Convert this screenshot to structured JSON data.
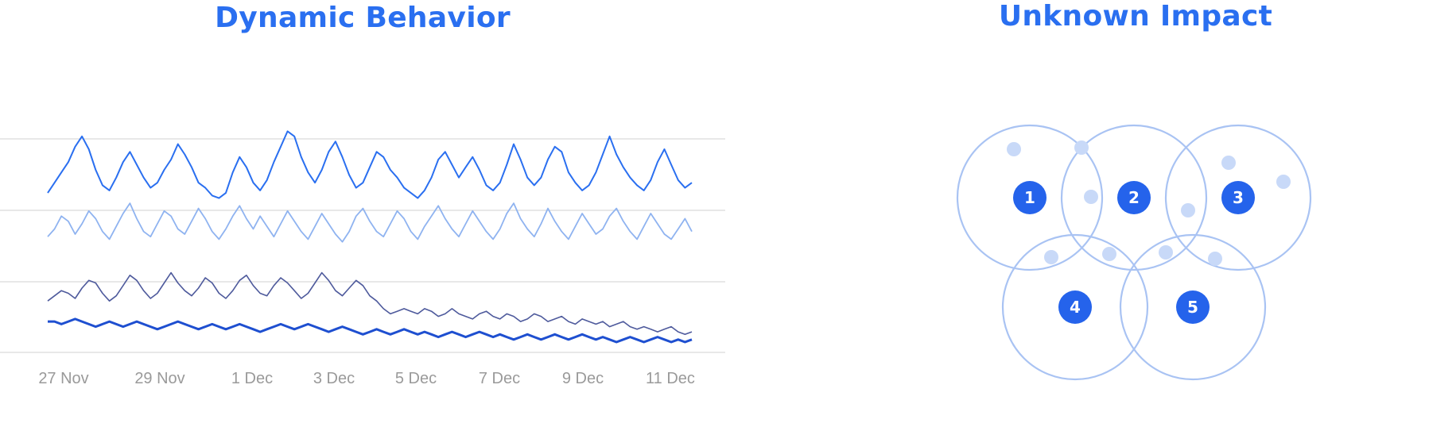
{
  "chart_data": [
    {
      "type": "line",
      "title": "Dynamic Behavior",
      "xlabel": "",
      "ylabel": "",
      "x_ticks": [
        "27 Nov",
        "29 Nov",
        "1 Dec",
        "3 Dec",
        "5 Dec",
        "7 Dec",
        "9 Dec",
        "11 Dec"
      ],
      "x_range": [
        "2023-11-26",
        "2023-12-12"
      ],
      "grid": true,
      "colors": [
        "#2a6ff0",
        "#8fb3f0",
        "#4e5a9c",
        "#1e4fd0"
      ],
      "series": [
        {
          "values": [
            62,
            66,
            70,
            74,
            80,
            84,
            79,
            71,
            65,
            63,
            68,
            74,
            78,
            73,
            68,
            64,
            66,
            71,
            75,
            81,
            77,
            72,
            66,
            64,
            61,
            60,
            62,
            70,
            76,
            72,
            66,
            63,
            67,
            74,
            80,
            86,
            84,
            76,
            70,
            66,
            71,
            78,
            82,
            76,
            69,
            64,
            66,
            72,
            78,
            76,
            71,
            68,
            64,
            62,
            60,
            63,
            68,
            75,
            78,
            73,
            68,
            72,
            76,
            71,
            65,
            63,
            66,
            73,
            81,
            75,
            68,
            65,
            68,
            75,
            80,
            78,
            70,
            66,
            63,
            65,
            70,
            77,
            84,
            77,
            72,
            68,
            65,
            63,
            67,
            74,
            79,
            73,
            67,
            64,
            66
          ]
        },
        {
          "values": [
            45,
            48,
            53,
            51,
            46,
            50,
            55,
            52,
            47,
            44,
            49,
            54,
            58,
            52,
            47,
            45,
            50,
            55,
            53,
            48,
            46,
            51,
            56,
            52,
            47,
            44,
            48,
            53,
            57,
            52,
            48,
            53,
            49,
            45,
            50,
            55,
            51,
            47,
            44,
            49,
            54,
            50,
            46,
            43,
            47,
            53,
            56,
            51,
            47,
            45,
            50,
            55,
            52,
            47,
            44,
            49,
            53,
            57,
            52,
            48,
            45,
            50,
            55,
            51,
            47,
            44,
            48,
            54,
            58,
            52,
            48,
            45,
            50,
            56,
            51,
            47,
            44,
            49,
            54,
            50,
            46,
            48,
            53,
            56,
            51,
            47,
            44,
            49,
            54,
            50,
            46,
            44,
            48,
            52,
            47
          ]
        },
        {
          "values": [
            20,
            22,
            24,
            23,
            21,
            25,
            28,
            27,
            23,
            20,
            22,
            26,
            30,
            28,
            24,
            21,
            23,
            27,
            31,
            27,
            24,
            22,
            25,
            29,
            27,
            23,
            21,
            24,
            28,
            30,
            26,
            23,
            22,
            26,
            29,
            27,
            24,
            21,
            23,
            27,
            31,
            28,
            24,
            22,
            25,
            28,
            26,
            22,
            20,
            17,
            15,
            16,
            17,
            16,
            15,
            17,
            16,
            14,
            15,
            17,
            15,
            14,
            13,
            15,
            16,
            14,
            13,
            15,
            14,
            12,
            13,
            15,
            14,
            12,
            13,
            14,
            12,
            11,
            13,
            12,
            11,
            12,
            10,
            11,
            12,
            10,
            9,
            10,
            9,
            8,
            9,
            10,
            8,
            7,
            8
          ]
        },
        {
          "values": [
            12,
            12,
            11,
            12,
            13,
            12,
            11,
            10,
            11,
            12,
            11,
            10,
            11,
            12,
            11,
            10,
            9,
            10,
            11,
            12,
            11,
            10,
            9,
            10,
            11,
            10,
            9,
            10,
            11,
            10,
            9,
            8,
            9,
            10,
            11,
            10,
            9,
            10,
            11,
            10,
            9,
            8,
            9,
            10,
            9,
            8,
            7,
            8,
            9,
            8,
            7,
            8,
            9,
            8,
            7,
            8,
            7,
            6,
            7,
            8,
            7,
            6,
            7,
            8,
            7,
            6,
            7,
            6,
            5,
            6,
            7,
            6,
            5,
            6,
            7,
            6,
            5,
            6,
            7,
            6,
            5,
            6,
            5,
            4,
            5,
            6,
            5,
            4,
            5,
            6,
            5,
            4,
            5,
            4,
            5
          ]
        }
      ],
      "ylim": [
        0,
        100
      ]
    },
    {
      "type": "diagram",
      "title": "Unknown Impact",
      "nodes": [
        "1",
        "2",
        "3",
        "4",
        "5"
      ],
      "colors": {
        "badge": "#2563eb",
        "ring": "#a9c3f3",
        "dot": "#c8d9f8"
      }
    }
  ]
}
